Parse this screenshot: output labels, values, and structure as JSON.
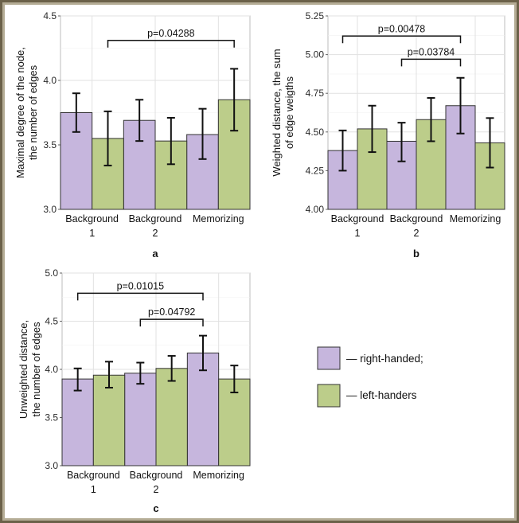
{
  "colors": {
    "right": "#c6b6dd",
    "left": "#bccd8a",
    "grid": "#e1e1e1",
    "axis": "#555555"
  },
  "legend": {
    "right_label": "— right-handed;",
    "left_label": "— left-handers"
  },
  "chart_data": [
    {
      "type": "bar",
      "panel": "a",
      "ylabel": [
        "Maximal degree of the node,",
        "the number of edges"
      ],
      "categories": [
        [
          "Background",
          "1"
        ],
        [
          "Background",
          "2"
        ],
        [
          "Memorizing"
        ]
      ],
      "ylim": [
        3.0,
        4.5
      ],
      "yticks": [
        "3.0",
        "3.5",
        "4.0",
        "4.5"
      ],
      "series": [
        {
          "key": "right",
          "values": [
            3.75,
            3.69,
            3.58
          ],
          "err_low": [
            3.6,
            3.53,
            3.39
          ],
          "err_high": [
            3.9,
            3.85,
            3.78
          ]
        },
        {
          "key": "left",
          "values": [
            3.55,
            3.53,
            3.85
          ],
          "err_low": [
            3.34,
            3.35,
            3.61
          ],
          "err_high": [
            3.76,
            3.71,
            4.09
          ]
        }
      ],
      "significance": [
        {
          "label": "p=0.04288",
          "from": [
            0,
            "left"
          ],
          "to": [
            2,
            "left"
          ],
          "y": 4.31
        }
      ]
    },
    {
      "type": "bar",
      "panel": "b",
      "ylabel": [
        "Weighted distance, the sum",
        "of edge weigths"
      ],
      "categories": [
        [
          "Background",
          "1"
        ],
        [
          "Background",
          "2"
        ],
        [
          "Memorizing"
        ]
      ],
      "ylim": [
        4.0,
        5.25
      ],
      "yticks": [
        "4.00",
        "4.25",
        "4.50",
        "4.75",
        "5.00",
        "5.25"
      ],
      "series": [
        {
          "key": "right",
          "values": [
            4.38,
            4.44,
            4.67
          ],
          "err_low": [
            4.25,
            4.31,
            4.49
          ],
          "err_high": [
            4.51,
            4.56,
            4.85
          ]
        },
        {
          "key": "left",
          "values": [
            4.52,
            4.58,
            4.43
          ],
          "err_low": [
            4.37,
            4.44,
            4.27
          ],
          "err_high": [
            4.67,
            4.72,
            4.59
          ]
        }
      ],
      "significance": [
        {
          "label": "p=0.00478",
          "from": [
            0,
            "right"
          ],
          "to": [
            2,
            "right"
          ],
          "y": 5.12
        },
        {
          "label": "p=0.03784",
          "from": [
            1,
            "right"
          ],
          "to": [
            2,
            "right"
          ],
          "y": 4.97
        }
      ]
    },
    {
      "type": "bar",
      "panel": "c",
      "ylabel": [
        "Unweighted distance,",
        "the number of edges"
      ],
      "categories": [
        [
          "Background",
          "1"
        ],
        [
          "Background",
          "2"
        ],
        [
          "Memorizing"
        ]
      ],
      "ylim": [
        3.0,
        5.0
      ],
      "yticks": [
        "3.0",
        "3.5",
        "4.0",
        "4.5",
        "5.0"
      ],
      "series": [
        {
          "key": "right",
          "values": [
            3.9,
            3.96,
            4.17
          ],
          "err_low": [
            3.78,
            3.85,
            3.99
          ],
          "err_high": [
            4.01,
            4.07,
            4.35
          ]
        },
        {
          "key": "left",
          "values": [
            3.94,
            4.01,
            3.9
          ],
          "err_low": [
            3.81,
            3.88,
            3.76
          ],
          "err_high": [
            4.08,
            4.14,
            4.04
          ]
        }
      ],
      "significance": [
        {
          "label": "p=0.01015",
          "from": [
            0,
            "right"
          ],
          "to": [
            2,
            "right"
          ],
          "y": 4.79
        },
        {
          "label": "p=0.04792",
          "from": [
            1,
            "right"
          ],
          "to": [
            2,
            "right"
          ],
          "y": 4.52
        }
      ]
    }
  ]
}
